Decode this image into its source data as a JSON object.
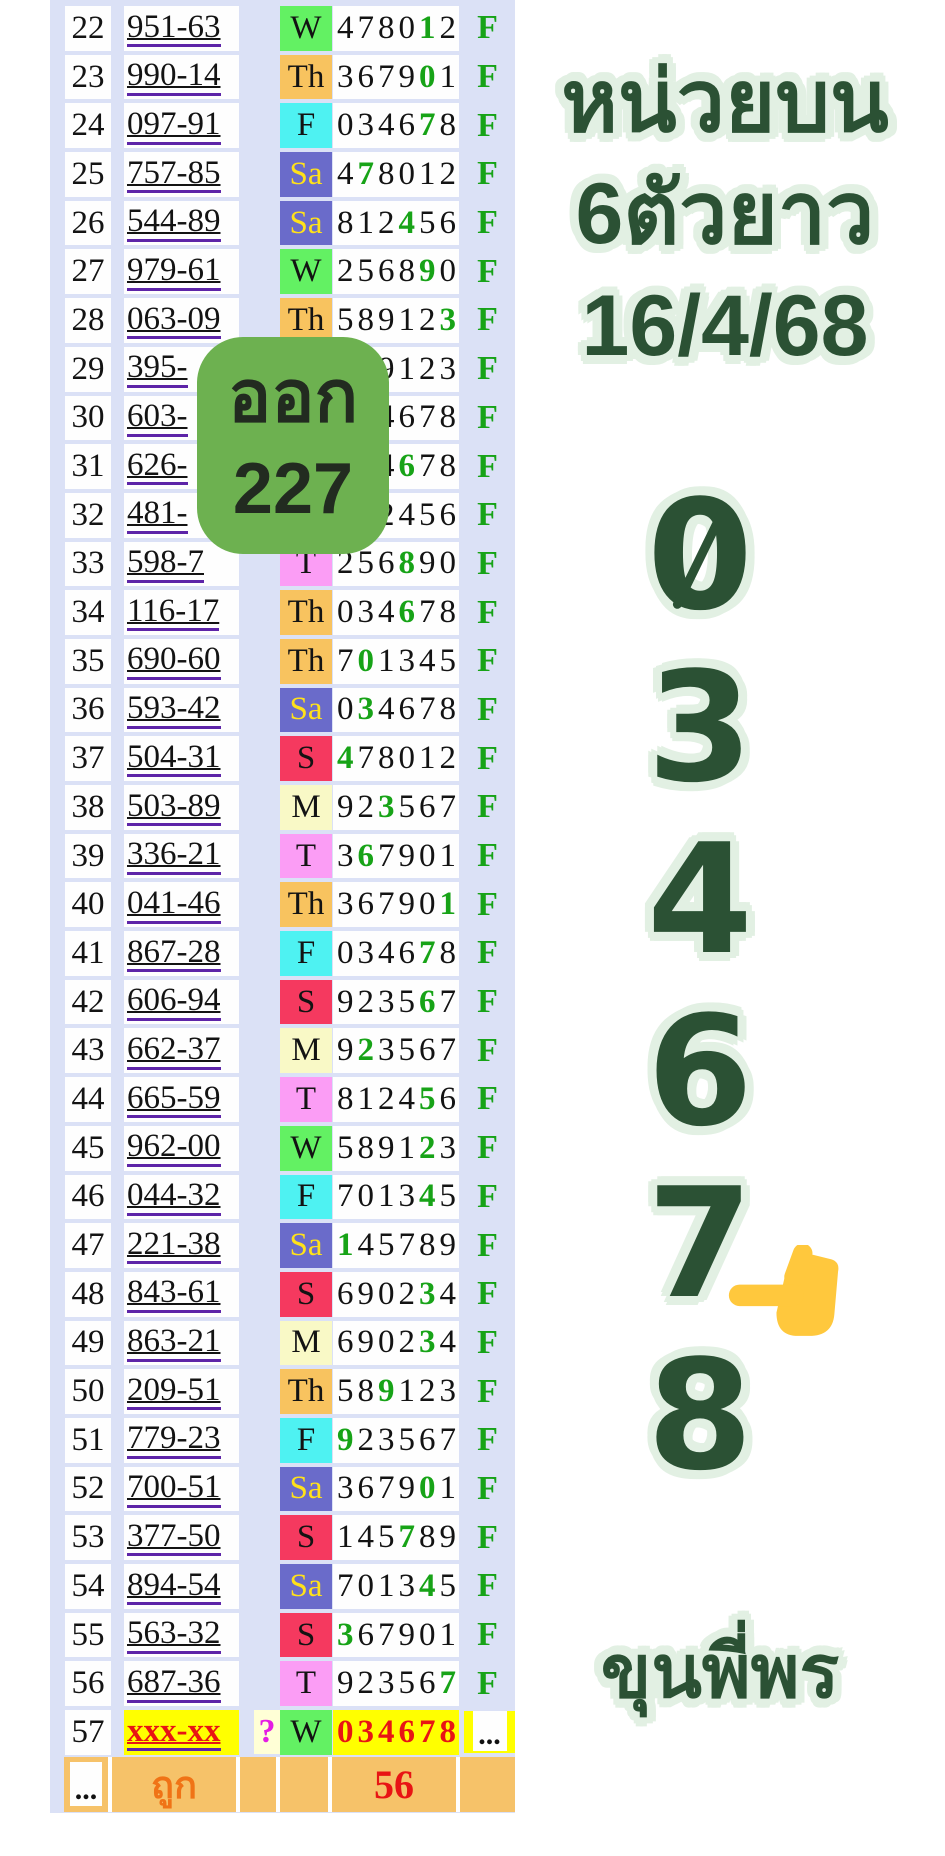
{
  "table": {
    "flag": "F",
    "rows": [
      {
        "n": "22",
        "num": "951-63",
        "day": "W",
        "seq": "478012",
        "green": 4
      },
      {
        "n": "23",
        "num": "990-14",
        "day": "Th",
        "seq": "367901",
        "green": 4
      },
      {
        "n": "24",
        "num": "097-91",
        "day": "F",
        "seq": "034678",
        "green": 4
      },
      {
        "n": "25",
        "num": "757-85",
        "day": "Sa",
        "seq": "478012",
        "green": 1
      },
      {
        "n": "26",
        "num": "544-89",
        "day": "Sa",
        "seq": "812456",
        "green": 3
      },
      {
        "n": "27",
        "num": "979-61",
        "day": "W",
        "seq": "256890",
        "green": 4
      },
      {
        "n": "28",
        "num": "063-09",
        "day": "Th",
        "seq": "589123",
        "green": 5
      },
      {
        "n": "29",
        "num": "395-",
        "day": "",
        "seq": "589123",
        "green": -1
      },
      {
        "n": "30",
        "num": "603-",
        "day": "",
        "seq": "034678",
        "green": -1
      },
      {
        "n": "31",
        "num": "626-",
        "day": "",
        "seq": "034678",
        "green": 3
      },
      {
        "n": "32",
        "num": "481-",
        "day": "",
        "seq": "812456",
        "green": -1
      },
      {
        "n": "33",
        "num": "598-7",
        "day": "T",
        "seq": "256890",
        "green": 3
      },
      {
        "n": "34",
        "num": "116-17",
        "day": "Th",
        "seq": "034678",
        "green": 3
      },
      {
        "n": "35",
        "num": "690-60",
        "day": "Th",
        "seq": "701345",
        "green": 1
      },
      {
        "n": "36",
        "num": "593-42",
        "day": "Sa",
        "seq": "034678",
        "green": 1
      },
      {
        "n": "37",
        "num": "504-31",
        "day": "S",
        "seq": "478012",
        "green": 0
      },
      {
        "n": "38",
        "num": "503-89",
        "day": "M",
        "seq": "923567",
        "green": 2
      },
      {
        "n": "39",
        "num": "336-21",
        "day": "T",
        "seq": "367901",
        "green": 1
      },
      {
        "n": "40",
        "num": "041-46",
        "day": "Th",
        "seq": "367901",
        "green": 5
      },
      {
        "n": "41",
        "num": "867-28",
        "day": "F",
        "seq": "034678",
        "green": 4
      },
      {
        "n": "42",
        "num": "606-94",
        "day": "S",
        "seq": "923567",
        "green": 4
      },
      {
        "n": "43",
        "num": "662-37",
        "day": "M",
        "seq": "923567",
        "green": 1
      },
      {
        "n": "44",
        "num": "665-59",
        "day": "T",
        "seq": "812456",
        "green": 4
      },
      {
        "n": "45",
        "num": "962-00",
        "day": "W",
        "seq": "589123",
        "green": 4
      },
      {
        "n": "46",
        "num": "044-32",
        "day": "F",
        "seq": "701345",
        "green": 4
      },
      {
        "n": "47",
        "num": "221-38",
        "day": "Sa",
        "seq": "145789",
        "green": 0
      },
      {
        "n": "48",
        "num": "843-61",
        "day": "S",
        "seq": "690234",
        "green": 4
      },
      {
        "n": "49",
        "num": "863-21",
        "day": "M",
        "seq": "690234",
        "green": 4
      },
      {
        "n": "50",
        "num": "209-51",
        "day": "Th",
        "seq": "589123",
        "green": 2
      },
      {
        "n": "51",
        "num": "779-23",
        "day": "F",
        "seq": "923567",
        "green": 0
      },
      {
        "n": "52",
        "num": "700-51",
        "day": "Sa",
        "seq": "367901",
        "green": 4
      },
      {
        "n": "53",
        "num": "377-50",
        "day": "S",
        "seq": "145789",
        "green": 3
      },
      {
        "n": "54",
        "num": "894-54",
        "day": "Sa",
        "seq": "701345",
        "green": 4
      },
      {
        "n": "55",
        "num": "563-32",
        "day": "S",
        "seq": "367901",
        "green": 0
      },
      {
        "n": "56",
        "num": "687-36",
        "day": "T",
        "seq": "923567",
        "green": 5
      }
    ],
    "special_row": {
      "n": "57",
      "num": "xxx-xx",
      "q": "?",
      "day": "W",
      "seq": "034678",
      "tail": "..."
    },
    "summary": {
      "dots": "...",
      "label": "ถูก",
      "count": "56"
    }
  },
  "badge": {
    "line1": "ออก",
    "line2": "227"
  },
  "panel": {
    "title_lines": [
      "หน่วยบน",
      "6ตัวยาว",
      "16/4/68"
    ],
    "digits": [
      "0",
      "3",
      "4",
      "6",
      "7",
      "8"
    ],
    "highlight_digit": "7",
    "finger_icon": "pointing-left",
    "footer": "ขุนพี่พร"
  },
  "colors": {
    "table_bg": "#dbe1f6",
    "cell_bg": "#fefefe",
    "green_digit": "#17a317",
    "underline": "#5d24a8",
    "day_W": "#63f163",
    "day_Th": "#f8c35f",
    "day_F": "#4ef2f2",
    "day_Sa": "#6a6bca",
    "day_Sa_text": "#ffe11a",
    "day_S": "#f5395f",
    "day_M": "#f9f9c6",
    "day_T": "#fb9df5",
    "badge_bg": "#6db150",
    "pending_bg": "#ffff00",
    "pending_text": "#e81414",
    "question": "#e41ce4",
    "summary_bg": "#f6c269",
    "summary_label": "#f07316",
    "panel_text": "#2b5134",
    "panel_glow": "#e2f0e3"
  }
}
